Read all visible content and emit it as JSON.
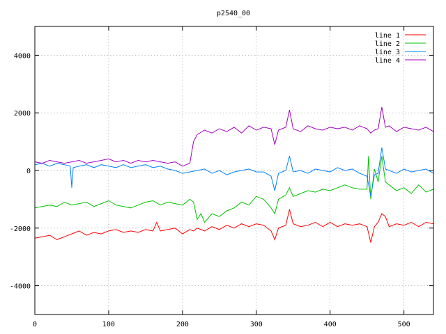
{
  "chart_data": {
    "type": "line",
    "title": "p2540_00",
    "xlabel": "",
    "ylabel": "",
    "xlim": [
      0,
      540
    ],
    "ylim": [
      -5000,
      5000
    ],
    "x_ticks": [
      0,
      100,
      200,
      300,
      400,
      500
    ],
    "y_ticks": [
      -4000,
      -2000,
      0,
      2000,
      4000
    ],
    "x_tick_labels": [
      "0",
      "100",
      "200",
      "300",
      "400",
      "500"
    ],
    "y_tick_labels": [
      "-4000",
      "-2000",
      "0",
      "2000",
      "4000"
    ],
    "grid": true,
    "legend_position": "top-right",
    "series": [
      {
        "name": "line 1",
        "color": "#ff0000",
        "x": [
          0,
          10,
          20,
          30,
          40,
          50,
          55,
          60,
          70,
          80,
          90,
          100,
          110,
          120,
          130,
          140,
          150,
          160,
          165,
          170,
          180,
          190,
          200,
          210,
          215,
          220,
          230,
          240,
          250,
          260,
          270,
          280,
          290,
          300,
          310,
          320,
          325,
          330,
          340,
          345,
          350,
          360,
          370,
          380,
          390,
          400,
          410,
          420,
          430,
          440,
          450,
          455,
          460,
          465,
          470,
          475,
          480,
          490,
          500,
          510,
          520,
          530,
          540
        ],
        "y": [
          -2350,
          -2300,
          -2250,
          -2400,
          -2300,
          -2200,
          -2150,
          -2100,
          -2250,
          -2150,
          -2200,
          -2100,
          -2050,
          -2150,
          -2100,
          -2150,
          -2050,
          -2100,
          -1800,
          -2100,
          -2050,
          -2000,
          -2200,
          -2050,
          -2100,
          -2000,
          -2100,
          -1950,
          -2050,
          -1900,
          -2000,
          -1850,
          -1950,
          -1850,
          -1900,
          -2100,
          -2400,
          -2000,
          -1900,
          -1350,
          -1850,
          -1950,
          -1900,
          -1800,
          -1950,
          -1800,
          -1950,
          -1850,
          -1900,
          -1850,
          -1950,
          -2500,
          -1950,
          -1800,
          -1500,
          -1600,
          -1950,
          -1850,
          -1900,
          -1800,
          -1950,
          -1800,
          -1850
        ]
      },
      {
        "name": "line 2",
        "color": "#00c000",
        "x": [
          0,
          10,
          20,
          30,
          40,
          50,
          60,
          70,
          80,
          90,
          100,
          110,
          120,
          130,
          140,
          150,
          160,
          170,
          180,
          190,
          200,
          210,
          215,
          220,
          225,
          230,
          240,
          250,
          260,
          270,
          280,
          290,
          300,
          310,
          320,
          325,
          330,
          340,
          345,
          350,
          360,
          370,
          380,
          390,
          400,
          410,
          420,
          430,
          440,
          450,
          452,
          455,
          460,
          465,
          470,
          475,
          480,
          490,
          500,
          510,
          520,
          530,
          540
        ],
        "y": [
          -1300,
          -1250,
          -1200,
          -1250,
          -1100,
          -1200,
          -1150,
          -1100,
          -1250,
          -1150,
          -1050,
          -1200,
          -1250,
          -1300,
          -1200,
          -1100,
          -1050,
          -1200,
          -1100,
          -1150,
          -1200,
          -1000,
          -1100,
          -1700,
          -1500,
          -1800,
          -1500,
          -1600,
          -1400,
          -1300,
          -1100,
          -1200,
          -900,
          -1000,
          -1300,
          -1500,
          -1000,
          -850,
          -600,
          -900,
          -800,
          -700,
          -750,
          -650,
          -700,
          -600,
          -500,
          -600,
          -650,
          -650,
          500,
          -1000,
          50,
          -400,
          500,
          -400,
          -500,
          -700,
          -600,
          -800,
          -500,
          -750,
          -650
        ]
      },
      {
        "name": "line 3",
        "color": "#0080ff",
        "x": [
          0,
          10,
          20,
          30,
          40,
          48,
          50,
          52,
          60,
          70,
          80,
          90,
          100,
          110,
          120,
          130,
          140,
          150,
          160,
          170,
          180,
          190,
          200,
          210,
          220,
          230,
          240,
          250,
          260,
          270,
          280,
          290,
          300,
          310,
          320,
          325,
          330,
          340,
          345,
          350,
          360,
          370,
          380,
          390,
          400,
          410,
          420,
          430,
          440,
          450,
          455,
          460,
          465,
          470,
          475,
          480,
          490,
          500,
          510,
          520,
          530,
          540
        ],
        "y": [
          200,
          250,
          150,
          250,
          200,
          150,
          -600,
          100,
          150,
          200,
          100,
          200,
          150,
          100,
          200,
          100,
          150,
          200,
          100,
          150,
          50,
          0,
          -100,
          -50,
          0,
          50,
          -100,
          0,
          -150,
          -50,
          0,
          50,
          -50,
          -50,
          -200,
          -700,
          -100,
          0,
          500,
          -50,
          0,
          -100,
          50,
          0,
          -50,
          100,
          0,
          50,
          -100,
          -200,
          -900,
          -150,
          -100,
          800,
          50,
          0,
          -100,
          50,
          -50,
          0,
          50,
          -100
        ]
      },
      {
        "name": "line 4",
        "color": "#a000c0",
        "x": [
          0,
          10,
          20,
          30,
          40,
          50,
          60,
          70,
          80,
          90,
          100,
          110,
          120,
          130,
          140,
          150,
          160,
          170,
          180,
          190,
          200,
          205,
          210,
          215,
          220,
          230,
          240,
          250,
          260,
          270,
          280,
          290,
          300,
          310,
          320,
          325,
          330,
          340,
          345,
          350,
          360,
          370,
          380,
          390,
          400,
          410,
          420,
          430,
          440,
          450,
          455,
          460,
          465,
          470,
          475,
          480,
          490,
          500,
          510,
          520,
          530,
          540
        ],
        "y": [
          300,
          250,
          350,
          300,
          250,
          300,
          350,
          250,
          300,
          350,
          400,
          300,
          350,
          250,
          350,
          300,
          350,
          300,
          250,
          300,
          150,
          200,
          250,
          1000,
          1250,
          1400,
          1300,
          1450,
          1350,
          1500,
          1300,
          1550,
          1400,
          1500,
          1450,
          900,
          1400,
          1500,
          2100,
          1450,
          1350,
          1550,
          1450,
          1400,
          1500,
          1450,
          1500,
          1400,
          1550,
          1450,
          1300,
          1400,
          1450,
          2200,
          1500,
          1550,
          1350,
          1500,
          1450,
          1400,
          1500,
          1350
        ]
      }
    ]
  }
}
